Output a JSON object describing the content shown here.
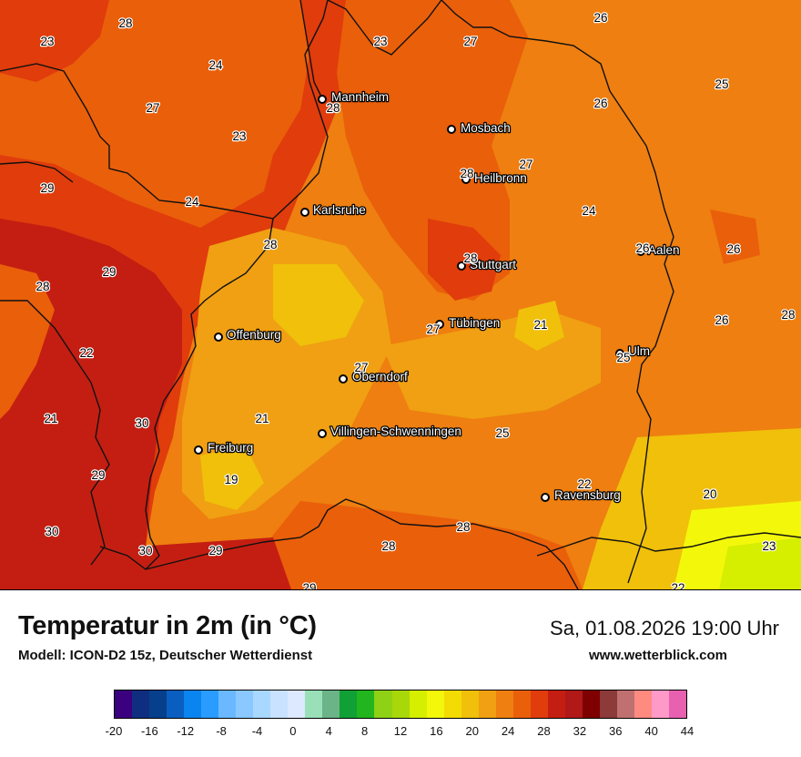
{
  "title": "Temperatur in 2m (in °C)",
  "model": "Modell: ICON-D2 15z, Deutscher Wetterdienst",
  "datetime": "Sa, 01.08.2026 19:00 Uhr",
  "website": "www.wetterblick.com",
  "colorbar": {
    "min": -20,
    "max": 44,
    "step": 2,
    "tick_labels": [
      "-20",
      "-16",
      "-12",
      "-8",
      "-4",
      "0",
      "4",
      "8",
      "12",
      "16",
      "20",
      "24",
      "28",
      "32",
      "36",
      "40",
      "44"
    ],
    "colors": [
      "#3b007f",
      "#102e80",
      "#063f8c",
      "#0a5ec0",
      "#0a85f0",
      "#2a9cff",
      "#6ab8ff",
      "#8ac8ff",
      "#a8d8ff",
      "#c8e2ff",
      "#dce9ff",
      "#99e0b8",
      "#6ab488",
      "#11a035",
      "#22b51e",
      "#8ed115",
      "#a8d80a",
      "#d6ee00",
      "#f3f80a",
      "#f2dc04",
      "#f0c00a",
      "#f0a012",
      "#ee7f10",
      "#ea5f0a",
      "#e03c0c",
      "#c41e12",
      "#b11818",
      "#7e0000",
      "#8c3a3a",
      "#c07070",
      "#ff8a80",
      "#ff9ac8",
      "#e860b0"
    ]
  },
  "cities": [
    {
      "name": "Mannheim",
      "label": "Mannheim"
    },
    {
      "name": "Mosbach",
      "label": "Mosbach"
    },
    {
      "name": "Heilbronn",
      "label": "Heilbronn"
    },
    {
      "name": "Karlsruhe",
      "label": "Karlsruhe"
    },
    {
      "name": "Stuttgart",
      "label": "Stuttgart"
    },
    {
      "name": "Aalen",
      "label": "Aalen"
    },
    {
      "name": "Tübingen",
      "label": "Tübingen"
    },
    {
      "name": "Offenburg",
      "label": "Offenburg"
    },
    {
      "name": "Ulm",
      "label": "Ulm"
    },
    {
      "name": "Oberndorf",
      "label": "Oberndorf"
    },
    {
      "name": "Villingen-Schwenningen",
      "label": "Villingen-Schwenningen"
    },
    {
      "name": "Freiburg",
      "label": "Freiburg"
    },
    {
      "name": "Ravensburg",
      "label": "Ravensburg"
    }
  ],
  "temperature_values": [
    "28",
    "23",
    "26",
    "23",
    "27",
    "24",
    "25",
    "27",
    "28",
    "26",
    "23",
    "28",
    "27",
    "29",
    "24",
    "24",
    "28",
    "28",
    "29",
    "28",
    "26",
    "26",
    "26",
    "28",
    "27",
    "21",
    "22",
    "25",
    "27",
    "21",
    "30",
    "21",
    "25",
    "29",
    "19",
    "22",
    "20",
    "30",
    "28",
    "28",
    "30",
    "29",
    "29",
    "22",
    "23"
  ]
}
